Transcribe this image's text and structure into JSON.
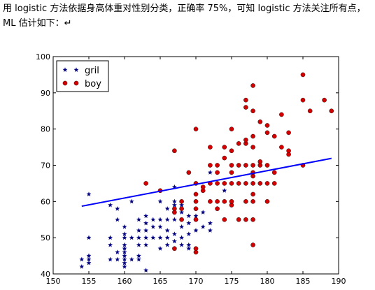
{
  "document": {
    "line1": "用 logistic 方法依据身高体重对性别分类，正确率 75%，可知 logistic 方法关注所有点，",
    "line2": "ML 估计如下：↵"
  },
  "chart_data": {
    "type": "scatter",
    "title": "",
    "xlabel": "",
    "ylabel": "",
    "xlim": [
      150,
      190
    ],
    "ylim": [
      40,
      100
    ],
    "xticks": [
      "150",
      "155",
      "160",
      "165",
      "170",
      "175",
      "180",
      "185",
      "190"
    ],
    "yticks": [
      "40",
      "50",
      "60",
      "70",
      "80",
      "90",
      "100"
    ],
    "grid": false,
    "legend_position": "top-left",
    "series": [
      {
        "name": "gril",
        "marker": "star",
        "color": "#000080",
        "points": [
          [
            154,
            42
          ],
          [
            154,
            44
          ],
          [
            155,
            43
          ],
          [
            155,
            44
          ],
          [
            155,
            45
          ],
          [
            155,
            50
          ],
          [
            155,
            62
          ],
          [
            158,
            44
          ],
          [
            158,
            48
          ],
          [
            158,
            50
          ],
          [
            158,
            59
          ],
          [
            159,
            44
          ],
          [
            159,
            46
          ],
          [
            159,
            55
          ],
          [
            159,
            58
          ],
          [
            160,
            42
          ],
          [
            160,
            43
          ],
          [
            160,
            44
          ],
          [
            160,
            45
          ],
          [
            160,
            46
          ],
          [
            160,
            47
          ],
          [
            160,
            48
          ],
          [
            160,
            50
          ],
          [
            160,
            51
          ],
          [
            160,
            53
          ],
          [
            161,
            44
          ],
          [
            161,
            50
          ],
          [
            161,
            60
          ],
          [
            162,
            44
          ],
          [
            162,
            45
          ],
          [
            162,
            48
          ],
          [
            162,
            50
          ],
          [
            162,
            52
          ],
          [
            162,
            55
          ],
          [
            163,
            41
          ],
          [
            163,
            48
          ],
          [
            163,
            50
          ],
          [
            163,
            52
          ],
          [
            163,
            54
          ],
          [
            163,
            56
          ],
          [
            164,
            50
          ],
          [
            164,
            53
          ],
          [
            164,
            55
          ],
          [
            165,
            47
          ],
          [
            165,
            50
          ],
          [
            165,
            53
          ],
          [
            165,
            55
          ],
          [
            165,
            60
          ],
          [
            166,
            48
          ],
          [
            166,
            50
          ],
          [
            166,
            52
          ],
          [
            166,
            55
          ],
          [
            166,
            58
          ],
          [
            167,
            47
          ],
          [
            167,
            49
          ],
          [
            167,
            51
          ],
          [
            167,
            55
          ],
          [
            167,
            57
          ],
          [
            167,
            59
          ],
          [
            167,
            60
          ],
          [
            167,
            64
          ],
          [
            168,
            48
          ],
          [
            168,
            50
          ],
          [
            168,
            53
          ],
          [
            168,
            57
          ],
          [
            168,
            59
          ],
          [
            169,
            47
          ],
          [
            169,
            48
          ],
          [
            169,
            51
          ],
          [
            169,
            54
          ],
          [
            169,
            56
          ],
          [
            170,
            52
          ],
          [
            170,
            55
          ],
          [
            170,
            56
          ],
          [
            171,
            53
          ],
          [
            171,
            57
          ],
          [
            172,
            52
          ],
          [
            172,
            54
          ],
          [
            172,
            68
          ],
          [
            173,
            58
          ],
          [
            174,
            63
          ]
        ]
      },
      {
        "name": "boy",
        "marker": "circle",
        "color": "#d40000",
        "points": [
          [
            163,
            65
          ],
          [
            165,
            63
          ],
          [
            167,
            57
          ],
          [
            167,
            58
          ],
          [
            167,
            74
          ],
          [
            167,
            47
          ],
          [
            168,
            55
          ],
          [
            168,
            58
          ],
          [
            168,
            60
          ],
          [
            169,
            68
          ],
          [
            170,
            46
          ],
          [
            170,
            47
          ],
          [
            170,
            55
          ],
          [
            170,
            58
          ],
          [
            170,
            60
          ],
          [
            170,
            62
          ],
          [
            170,
            65
          ],
          [
            170,
            80
          ],
          [
            171,
            63
          ],
          [
            171,
            64
          ],
          [
            172,
            60
          ],
          [
            172,
            65
          ],
          [
            172,
            70
          ],
          [
            172,
            75
          ],
          [
            173,
            58
          ],
          [
            173,
            60
          ],
          [
            173,
            65
          ],
          [
            173,
            68
          ],
          [
            173,
            70
          ],
          [
            174,
            55
          ],
          [
            174,
            60
          ],
          [
            174,
            65
          ],
          [
            174,
            72
          ],
          [
            174,
            75
          ],
          [
            175,
            59
          ],
          [
            175,
            60
          ],
          [
            175,
            65
          ],
          [
            175,
            68
          ],
          [
            175,
            70
          ],
          [
            175,
            74
          ],
          [
            175,
            80
          ],
          [
            176,
            55
          ],
          [
            176,
            65
          ],
          [
            176,
            70
          ],
          [
            176,
            76
          ],
          [
            177,
            55
          ],
          [
            177,
            60
          ],
          [
            177,
            65
          ],
          [
            177,
            70
          ],
          [
            177,
            76
          ],
          [
            177,
            77
          ],
          [
            177,
            86
          ],
          [
            177,
            88
          ],
          [
            178,
            48
          ],
          [
            178,
            55
          ],
          [
            178,
            60
          ],
          [
            178,
            62
          ],
          [
            178,
            65
          ],
          [
            178,
            67
          ],
          [
            178,
            68
          ],
          [
            178,
            70
          ],
          [
            178,
            75
          ],
          [
            178,
            78
          ],
          [
            178,
            85
          ],
          [
            178,
            92
          ],
          [
            179,
            65
          ],
          [
            179,
            70
          ],
          [
            179,
            82
          ],
          [
            179,
            71
          ],
          [
            180,
            60
          ],
          [
            180,
            65
          ],
          [
            180,
            70
          ],
          [
            180,
            79
          ],
          [
            180,
            81
          ],
          [
            181,
            68
          ],
          [
            181,
            65
          ],
          [
            181,
            78
          ],
          [
            182,
            75
          ],
          [
            182,
            84
          ],
          [
            183,
            73
          ],
          [
            183,
            74
          ],
          [
            183,
            79
          ],
          [
            185,
            70
          ],
          [
            185,
            88
          ],
          [
            185,
            95
          ],
          [
            186,
            85
          ],
          [
            188,
            88
          ],
          [
            189,
            85
          ]
        ]
      }
    ],
    "lines": [
      {
        "name": "",
        "color": "#0000ff",
        "x": [
          154,
          189
        ],
        "y": [
          58.7,
          71.9
        ]
      }
    ]
  }
}
